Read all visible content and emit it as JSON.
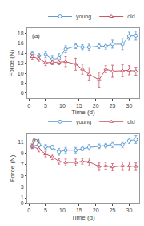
{
  "chart_data": [
    {
      "type": "line",
      "annotations": [
        "(a)"
      ],
      "xlabel": "Time (d)",
      "ylabel": "Force (N)",
      "x": [
        1,
        3,
        5,
        7,
        9,
        11,
        14,
        16,
        18,
        21,
        23,
        25,
        28,
        30,
        32
      ],
      "series": [
        {
          "name": "young",
          "color": "#5b9bd5",
          "marker": "circle",
          "values": [
            13.8,
            13.5,
            13.7,
            12.8,
            13.0,
            14.8,
            15.4,
            15.2,
            15.2,
            15.4,
            15.4,
            15.8,
            15.8,
            17.4,
            17.5
          ],
          "errors": [
            0.5,
            0.4,
            0.6,
            0.6,
            0.9,
            0.7,
            0.5,
            0.5,
            0.6,
            0.5,
            0.6,
            0.8,
            1.1,
            0.8,
            0.9
          ]
        },
        {
          "name": "old",
          "color": "#c9596a",
          "marker": "triangle-up",
          "values": [
            13.3,
            12.9,
            12.1,
            12.2,
            12.2,
            12.3,
            11.8,
            10.8,
            9.8,
            8.7,
            10.8,
            10.4,
            10.5,
            10.6,
            10.4
          ],
          "errors": [
            0.5,
            0.5,
            0.6,
            0.5,
            0.5,
            1.0,
            1.2,
            1.0,
            1.3,
            1.5,
            0.7,
            1.2,
            1.2,
            0.9,
            0.8
          ]
        }
      ],
      "xlim": [
        -0.5,
        33
      ],
      "xticks": [
        0,
        5,
        10,
        15,
        20,
        25,
        30
      ],
      "ylim": [
        5,
        19
      ],
      "yticks": [
        6,
        8,
        10,
        12,
        14,
        16,
        18
      ],
      "legend": "upper right",
      "grid": false
    },
    {
      "type": "line",
      "annotations": [
        "(b)"
      ],
      "xlabel": "Time (d)",
      "ylabel": "Force (N)",
      "x": [
        1,
        3,
        5,
        7,
        9,
        11,
        14,
        16,
        18,
        21,
        23,
        25,
        28,
        30,
        32
      ],
      "series": [
        {
          "name": "young",
          "color": "#5b9bd5",
          "marker": "circle",
          "values": [
            10.2,
            10.5,
            10.1,
            10.0,
            9.2,
            9.5,
            9.5,
            9.8,
            10.0,
            10.2,
            10.3,
            10.5,
            10.5,
            11.2,
            11.4
          ],
          "errors": [
            0.4,
            0.4,
            0.4,
            0.4,
            0.6,
            0.5,
            0.5,
            0.4,
            0.5,
            0.4,
            0.4,
            0.5,
            0.5,
            0.5,
            0.7
          ]
        },
        {
          "name": "old",
          "color": "#c9596a",
          "marker": "triangle-up",
          "values": [
            10.2,
            9.7,
            8.8,
            8.3,
            7.5,
            7.3,
            7.3,
            7.5,
            7.4,
            6.6,
            6.7,
            6.5,
            6.7,
            6.7,
            6.6
          ],
          "errors": [
            0.4,
            0.5,
            0.5,
            0.5,
            0.5,
            0.6,
            0.6,
            0.5,
            0.7,
            0.6,
            0.6,
            0.6,
            0.7,
            0.7,
            0.6
          ]
        }
      ],
      "xlim": [
        -0.5,
        33
      ],
      "xticks": [
        0,
        5,
        10,
        15,
        20,
        25,
        30
      ],
      "ylim": [
        0,
        12.5
      ],
      "yticks": [
        0,
        1,
        3,
        5,
        7,
        9,
        11
      ],
      "legend": "upper right",
      "grid": false
    }
  ]
}
